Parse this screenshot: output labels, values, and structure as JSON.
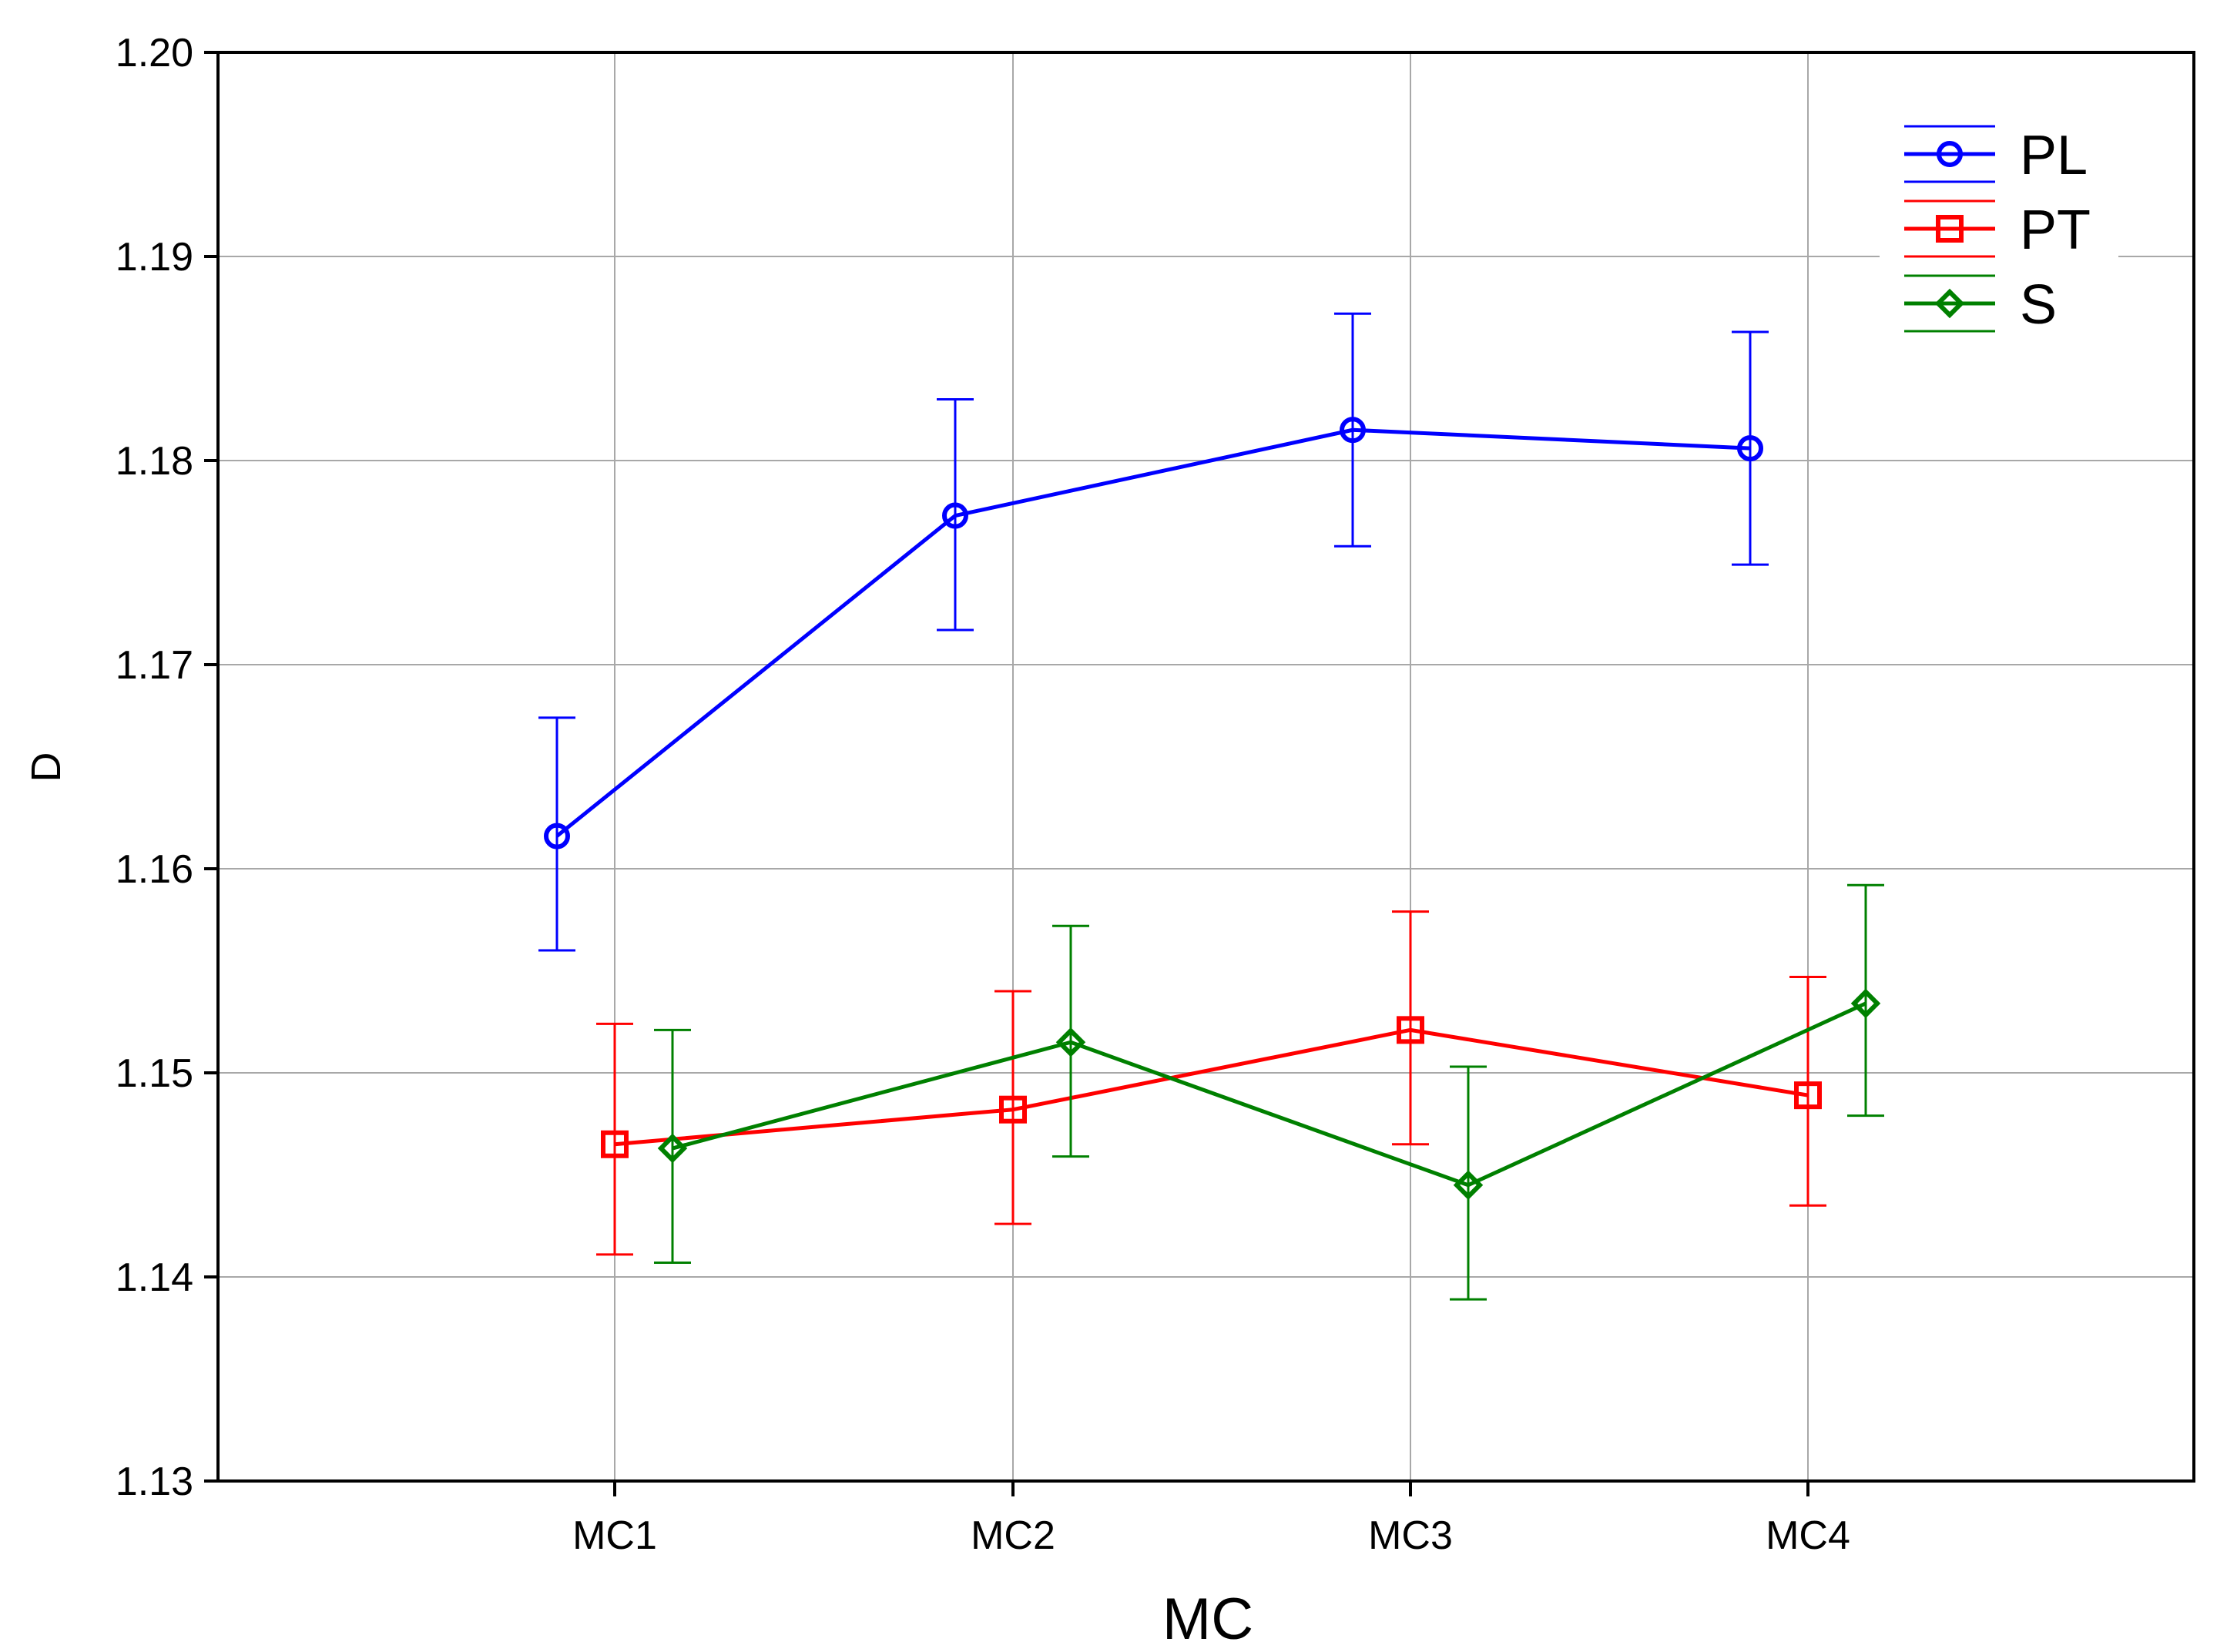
{
  "chart_data": {
    "type": "line",
    "title": "",
    "xlabel": "MC",
    "ylabel": "D",
    "categories": [
      "MC1",
      "MC2",
      "MC3",
      "MC4"
    ],
    "ylim": [
      1.13,
      1.2
    ],
    "yticks": [
      "1.13",
      "1.14",
      "1.15",
      "1.16",
      "1.17",
      "1.18",
      "1.19",
      "1.20"
    ],
    "grid": true,
    "legend_position": "top-right",
    "error_bars": true,
    "series": [
      {
        "name": "PL",
        "color": "#0000ff",
        "marker": "circle",
        "values": [
          1.1616,
          1.1773,
          1.1815,
          1.1806
        ],
        "lower": [
          1.156,
          1.1717,
          1.1758,
          1.1749
        ],
        "upper": [
          1.1674,
          1.183,
          1.1872,
          1.1863
        ]
      },
      {
        "name": "PT",
        "color": "#ff0000",
        "marker": "square",
        "values": [
          1.1465,
          1.1482,
          1.1521,
          1.1489
        ],
        "lower": [
          1.1411,
          1.1426,
          1.1465,
          1.1435
        ],
        "upper": [
          1.1524,
          1.154,
          1.1579,
          1.1547
        ]
      },
      {
        "name": "S",
        "color": "#008000",
        "marker": "diamond",
        "values": [
          1.1463,
          1.1515,
          1.1445,
          1.1534
        ],
        "lower": [
          1.1407,
          1.1459,
          1.1389,
          1.1479
        ],
        "upper": [
          1.1521,
          1.1572,
          1.1503,
          1.1592
        ]
      }
    ]
  }
}
